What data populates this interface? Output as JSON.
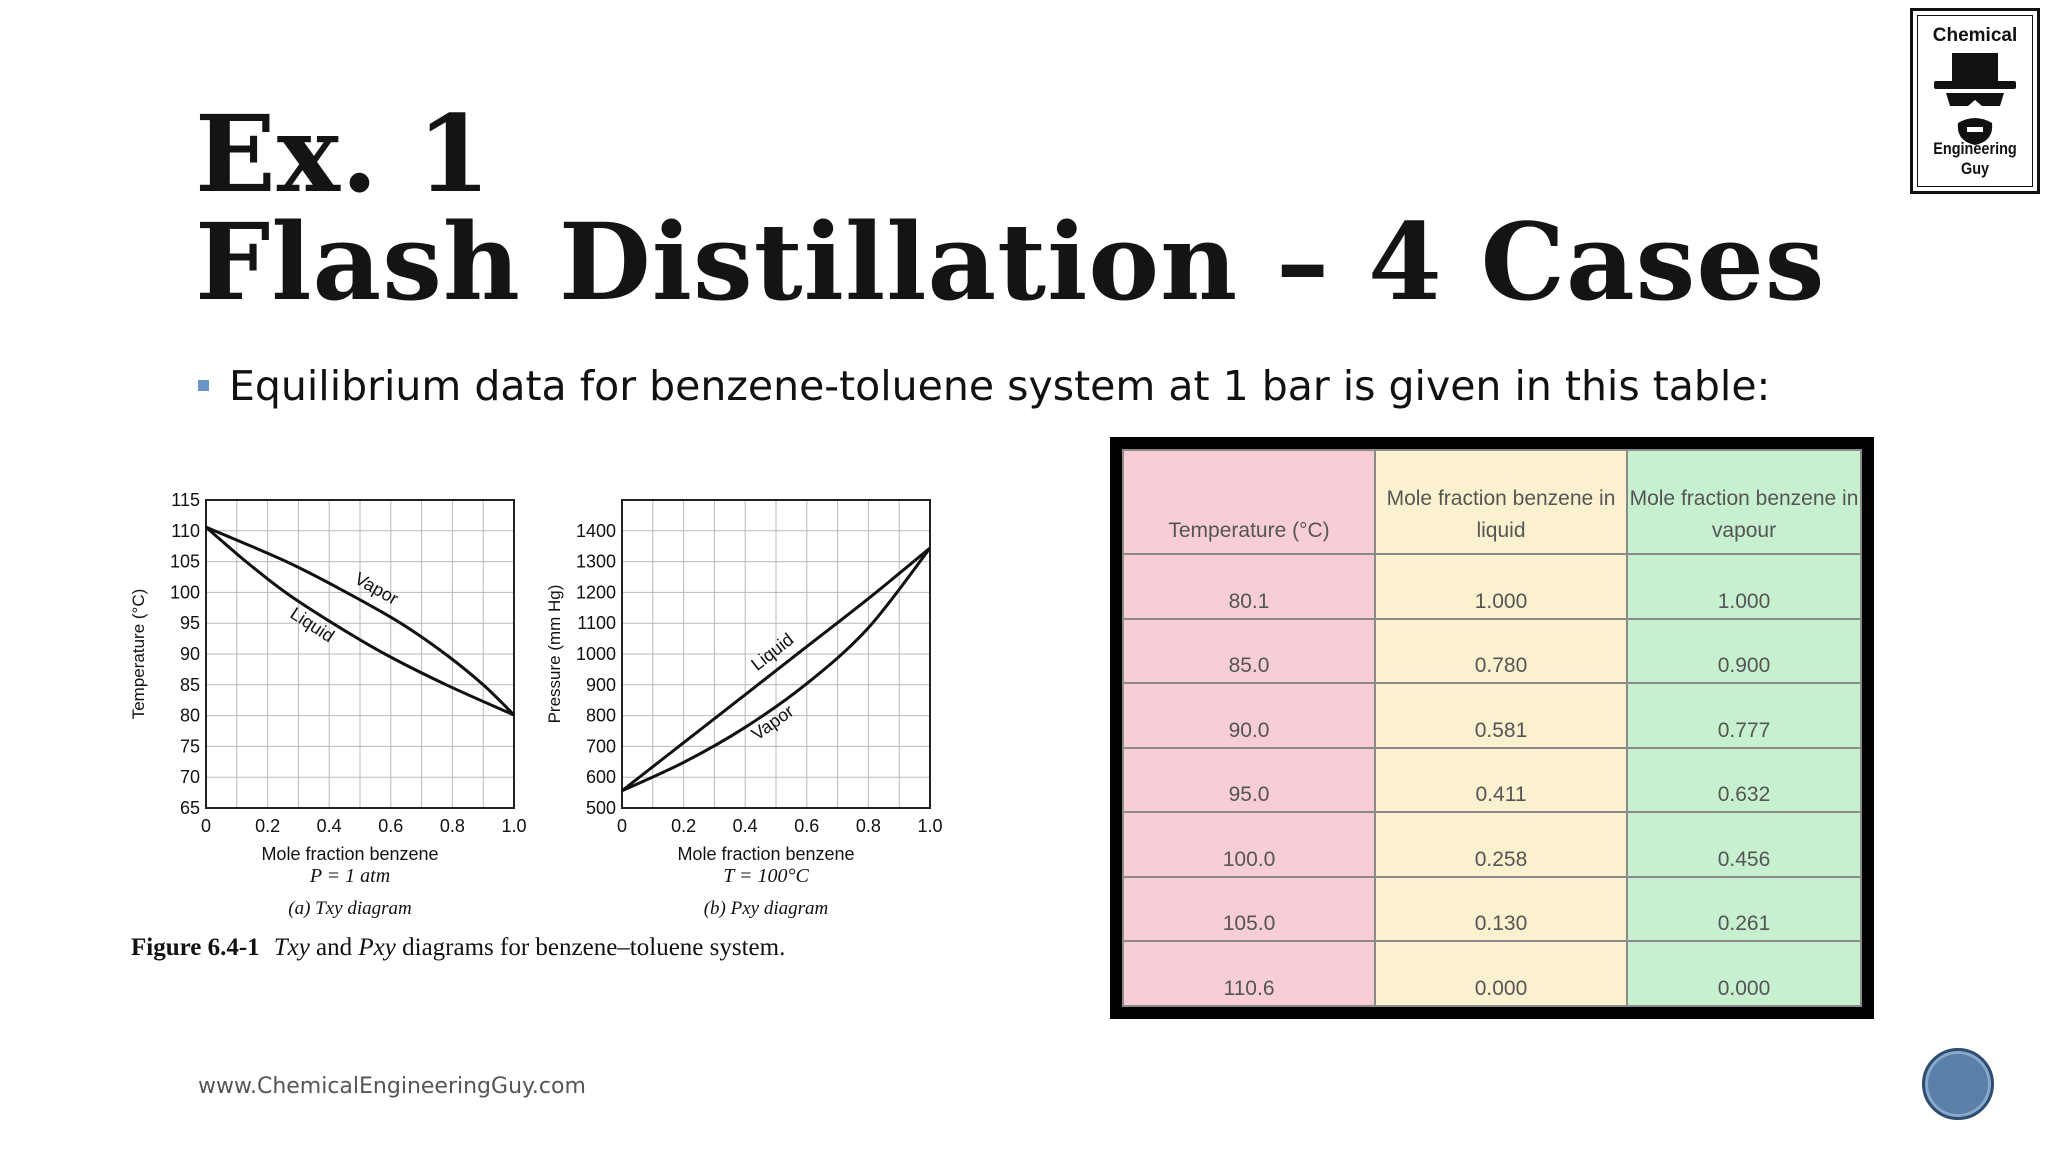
{
  "slide": {
    "title_line1": "Ex. 1",
    "title_line2": "Flash Distillation – 4 Cases",
    "bullet": "Equilibrium data for benzene-toluene system at 1 bar is given in this table:",
    "footer": "www.ChemicalEngineeringGuy.com"
  },
  "logo": {
    "top_text": "Chemical",
    "bottom_text": "Engineering Guy",
    "icon": "heisenberg-hat-icon"
  },
  "figure": {
    "caption_number": "Figure 6.4-1",
    "caption_italic1": "Txy",
    "caption_mid": " and ",
    "caption_italic2": "Pxy",
    "caption_rest": " diagrams for benzene–toluene system."
  },
  "chart_data": [
    {
      "type": "line",
      "xlabel": "Mole fraction benzene",
      "condition": "P = 1 atm",
      "sublabel": "(a) Txy diagram",
      "ylabel": "Temperature (°C)",
      "xlim": [
        0,
        1.0
      ],
      "ylim": [
        65,
        115
      ],
      "x_ticks": [
        "0",
        "0.2",
        "0.4",
        "0.6",
        "0.8",
        "1.0"
      ],
      "y_ticks": [
        "65",
        "70",
        "75",
        "80",
        "85",
        "90",
        "95",
        "100",
        "105",
        "110",
        "115"
      ],
      "grid": true,
      "series": [
        {
          "name": "Liquid",
          "x": [
            0,
            0.13,
            0.258,
            0.411,
            0.581,
            0.78,
            1.0
          ],
          "y": [
            110.6,
            105.0,
            100.0,
            95.0,
            90.0,
            85.0,
            80.1
          ]
        },
        {
          "name": "Vapor",
          "x": [
            0,
            0.261,
            0.456,
            0.632,
            0.777,
            0.9,
            1.0
          ],
          "y": [
            110.6,
            105.0,
            100.0,
            95.0,
            90.0,
            85.0,
            80.1
          ]
        }
      ]
    },
    {
      "type": "line",
      "xlabel": "Mole fraction benzene",
      "condition": "T = 100°C",
      "sublabel": "(b) Pxy diagram",
      "ylabel": "Pressure (mm Hg)",
      "xlim": [
        0,
        1.0
      ],
      "ylim": [
        500,
        1500
      ],
      "x_ticks": [
        "0",
        "0.2",
        "0.4",
        "0.6",
        "0.8",
        "1.0"
      ],
      "y_ticks": [
        "500",
        "600",
        "700",
        "800",
        "900",
        "1000",
        "1100",
        "1200",
        "1300",
        "1400"
      ],
      "grid": true,
      "series": [
        {
          "name": "Liquid",
          "x": [
            0,
            0.2,
            0.4,
            0.6,
            0.8,
            1.0
          ],
          "y": [
            556,
            712,
            868,
            1024,
            1180,
            1344
          ]
        },
        {
          "name": "Vapor",
          "x": [
            0,
            0.2,
            0.4,
            0.6,
            0.8,
            1.0
          ],
          "y": [
            556,
            648,
            762,
            904,
            1085,
            1344
          ]
        }
      ]
    }
  ],
  "table": {
    "headers": [
      "Temperature (°C)",
      "Mole fraction benzene in liquid",
      "Mole fraction benzene in vapour"
    ],
    "rows": [
      [
        "80.1",
        "1.000",
        "1.000"
      ],
      [
        "85.0",
        "0.780",
        "0.900"
      ],
      [
        "90.0",
        "0.581",
        "0.777"
      ],
      [
        "95.0",
        "0.411",
        "0.632"
      ],
      [
        "100.0",
        "0.258",
        "0.456"
      ],
      [
        "105.0",
        "0.130",
        "0.261"
      ],
      [
        "110.6",
        "0.000",
        "0.000"
      ]
    ],
    "colors": {
      "temp": "#f7cdd6",
      "liquid": "#fbf1cf",
      "vapour": "#c6f0cf"
    }
  },
  "nav": {
    "icon": "slide-nav-button-icon"
  }
}
